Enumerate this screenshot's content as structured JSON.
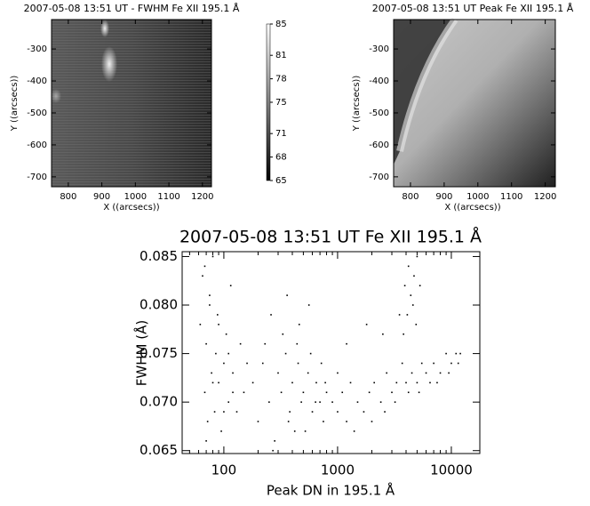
{
  "chart_data": [
    {
      "type": "image",
      "title": "2007-05-08 13:51 UT - FWHM Fe XII 195.1 Å",
      "xlabel": "X ((arcsecs))",
      "ylabel": "Y ((arcsecs))",
      "xlim": [
        750,
        1227
      ],
      "ylim": [
        -731,
        -208
      ],
      "xticks": [
        800,
        900,
        1000,
        1100,
        1200
      ],
      "yticks": [
        -300,
        -400,
        -500,
        -600,
        -700
      ],
      "colorbar": {
        "lim": [
          65,
          85
        ],
        "ticks": [
          85,
          81,
          78,
          75,
          71,
          68,
          65
        ]
      }
    },
    {
      "type": "image",
      "title": "2007-05-08 13:51 UT Peak Fe XII 195.1 Å",
      "xlabel": "X ((arcsecs))",
      "ylabel": "Y ((arcsecs))",
      "xlim": [
        750,
        1230
      ],
      "ylim": [
        -731,
        -208
      ],
      "xticks": [
        800,
        900,
        1000,
        1100,
        1200
      ],
      "yticks": [
        -300,
        -400,
        -500,
        -600,
        -700
      ]
    },
    {
      "type": "scatter",
      "title": "2007-05-08 13:51 UT Fe XII 195.1 Å",
      "xlabel": "Peak DN in 195.1 Å",
      "ylabel": "FWHM (Å)",
      "xlog": true,
      "xlim": [
        43,
        17800
      ],
      "ylim": [
        0.0647,
        0.0855
      ],
      "xticks": [
        100,
        1000,
        10000
      ],
      "yticks": [
        0.065,
        {
          "value": 0.07,
          "label": "0.070"
        },
        0.075,
        {
          "value": 0.08,
          "label": "0.080"
        },
        0.085
      ],
      "series": [
        {
          "color": "#000000",
          "x": [
            62,
            65,
            68,
            70,
            72,
            75,
            78,
            80,
            83,
            85,
            88,
            90,
            95,
            100,
            105,
            110,
            115,
            120,
            130,
            140,
            150,
            160,
            70,
            75,
            80,
            90,
            100,
            110,
            120,
            68,
            180,
            200,
            220,
            250,
            280,
            300,
            320,
            350,
            380,
            400,
            420,
            450,
            480,
            500,
            550,
            600,
            650,
            700,
            750,
            800,
            230,
            270,
            330,
            370,
            440,
            520,
            580,
            640,
            720,
            780,
            260,
            360,
            460,
            560,
            900,
            1000,
            1100,
            1200,
            1300,
            1500,
            1700,
            1900,
            2100,
            2400,
            2700,
            3000,
            3300,
            3700,
            4000,
            4500,
            5000,
            5500,
            6000,
            7000,
            8000,
            9000,
            10000,
            11000,
            12000,
            1000,
            1400,
            2000,
            2600,
            3200,
            4200,
            5200,
            6500,
            7500,
            9500,
            11500,
            1200,
            1800,
            2500,
            3500,
            3800,
            4100,
            4400,
            4700,
            5000,
            5300,
            4200,
            4600,
            4900,
            3900
          ],
          "y": [
            0.078,
            0.083,
            0.071,
            0.076,
            0.068,
            0.08,
            0.073,
            0.085,
            0.069,
            0.075,
            0.079,
            0.072,
            0.067,
            0.074,
            0.077,
            0.07,
            0.082,
            0.073,
            0.069,
            0.076,
            0.071,
            0.074,
            0.066,
            0.081,
            0.072,
            0.078,
            0.069,
            0.075,
            0.071,
            0.084,
            0.072,
            0.068,
            0.074,
            0.07,
            0.066,
            0.073,
            0.071,
            0.075,
            0.069,
            0.072,
            0.067,
            0.074,
            0.07,
            0.071,
            0.073,
            0.069,
            0.072,
            0.07,
            0.068,
            0.071,
            0.076,
            0.065,
            0.077,
            0.068,
            0.076,
            0.067,
            0.075,
            0.07,
            0.074,
            0.072,
            0.079,
            0.081,
            0.078,
            0.08,
            0.07,
            0.069,
            0.071,
            0.068,
            0.072,
            0.07,
            0.069,
            0.071,
            0.072,
            0.07,
            0.073,
            0.071,
            0.072,
            0.074,
            0.072,
            0.073,
            0.072,
            0.074,
            0.073,
            0.074,
            0.073,
            0.075,
            0.074,
            0.075,
            0.075,
            0.073,
            0.067,
            0.068,
            0.069,
            0.07,
            0.071,
            0.071,
            0.072,
            0.072,
            0.073,
            0.074,
            0.076,
            0.078,
            0.077,
            0.079,
            0.077,
            0.079,
            0.081,
            0.083,
            0.085,
            0.082,
            0.084,
            0.08,
            0.078,
            0.082
          ]
        }
      ]
    }
  ]
}
